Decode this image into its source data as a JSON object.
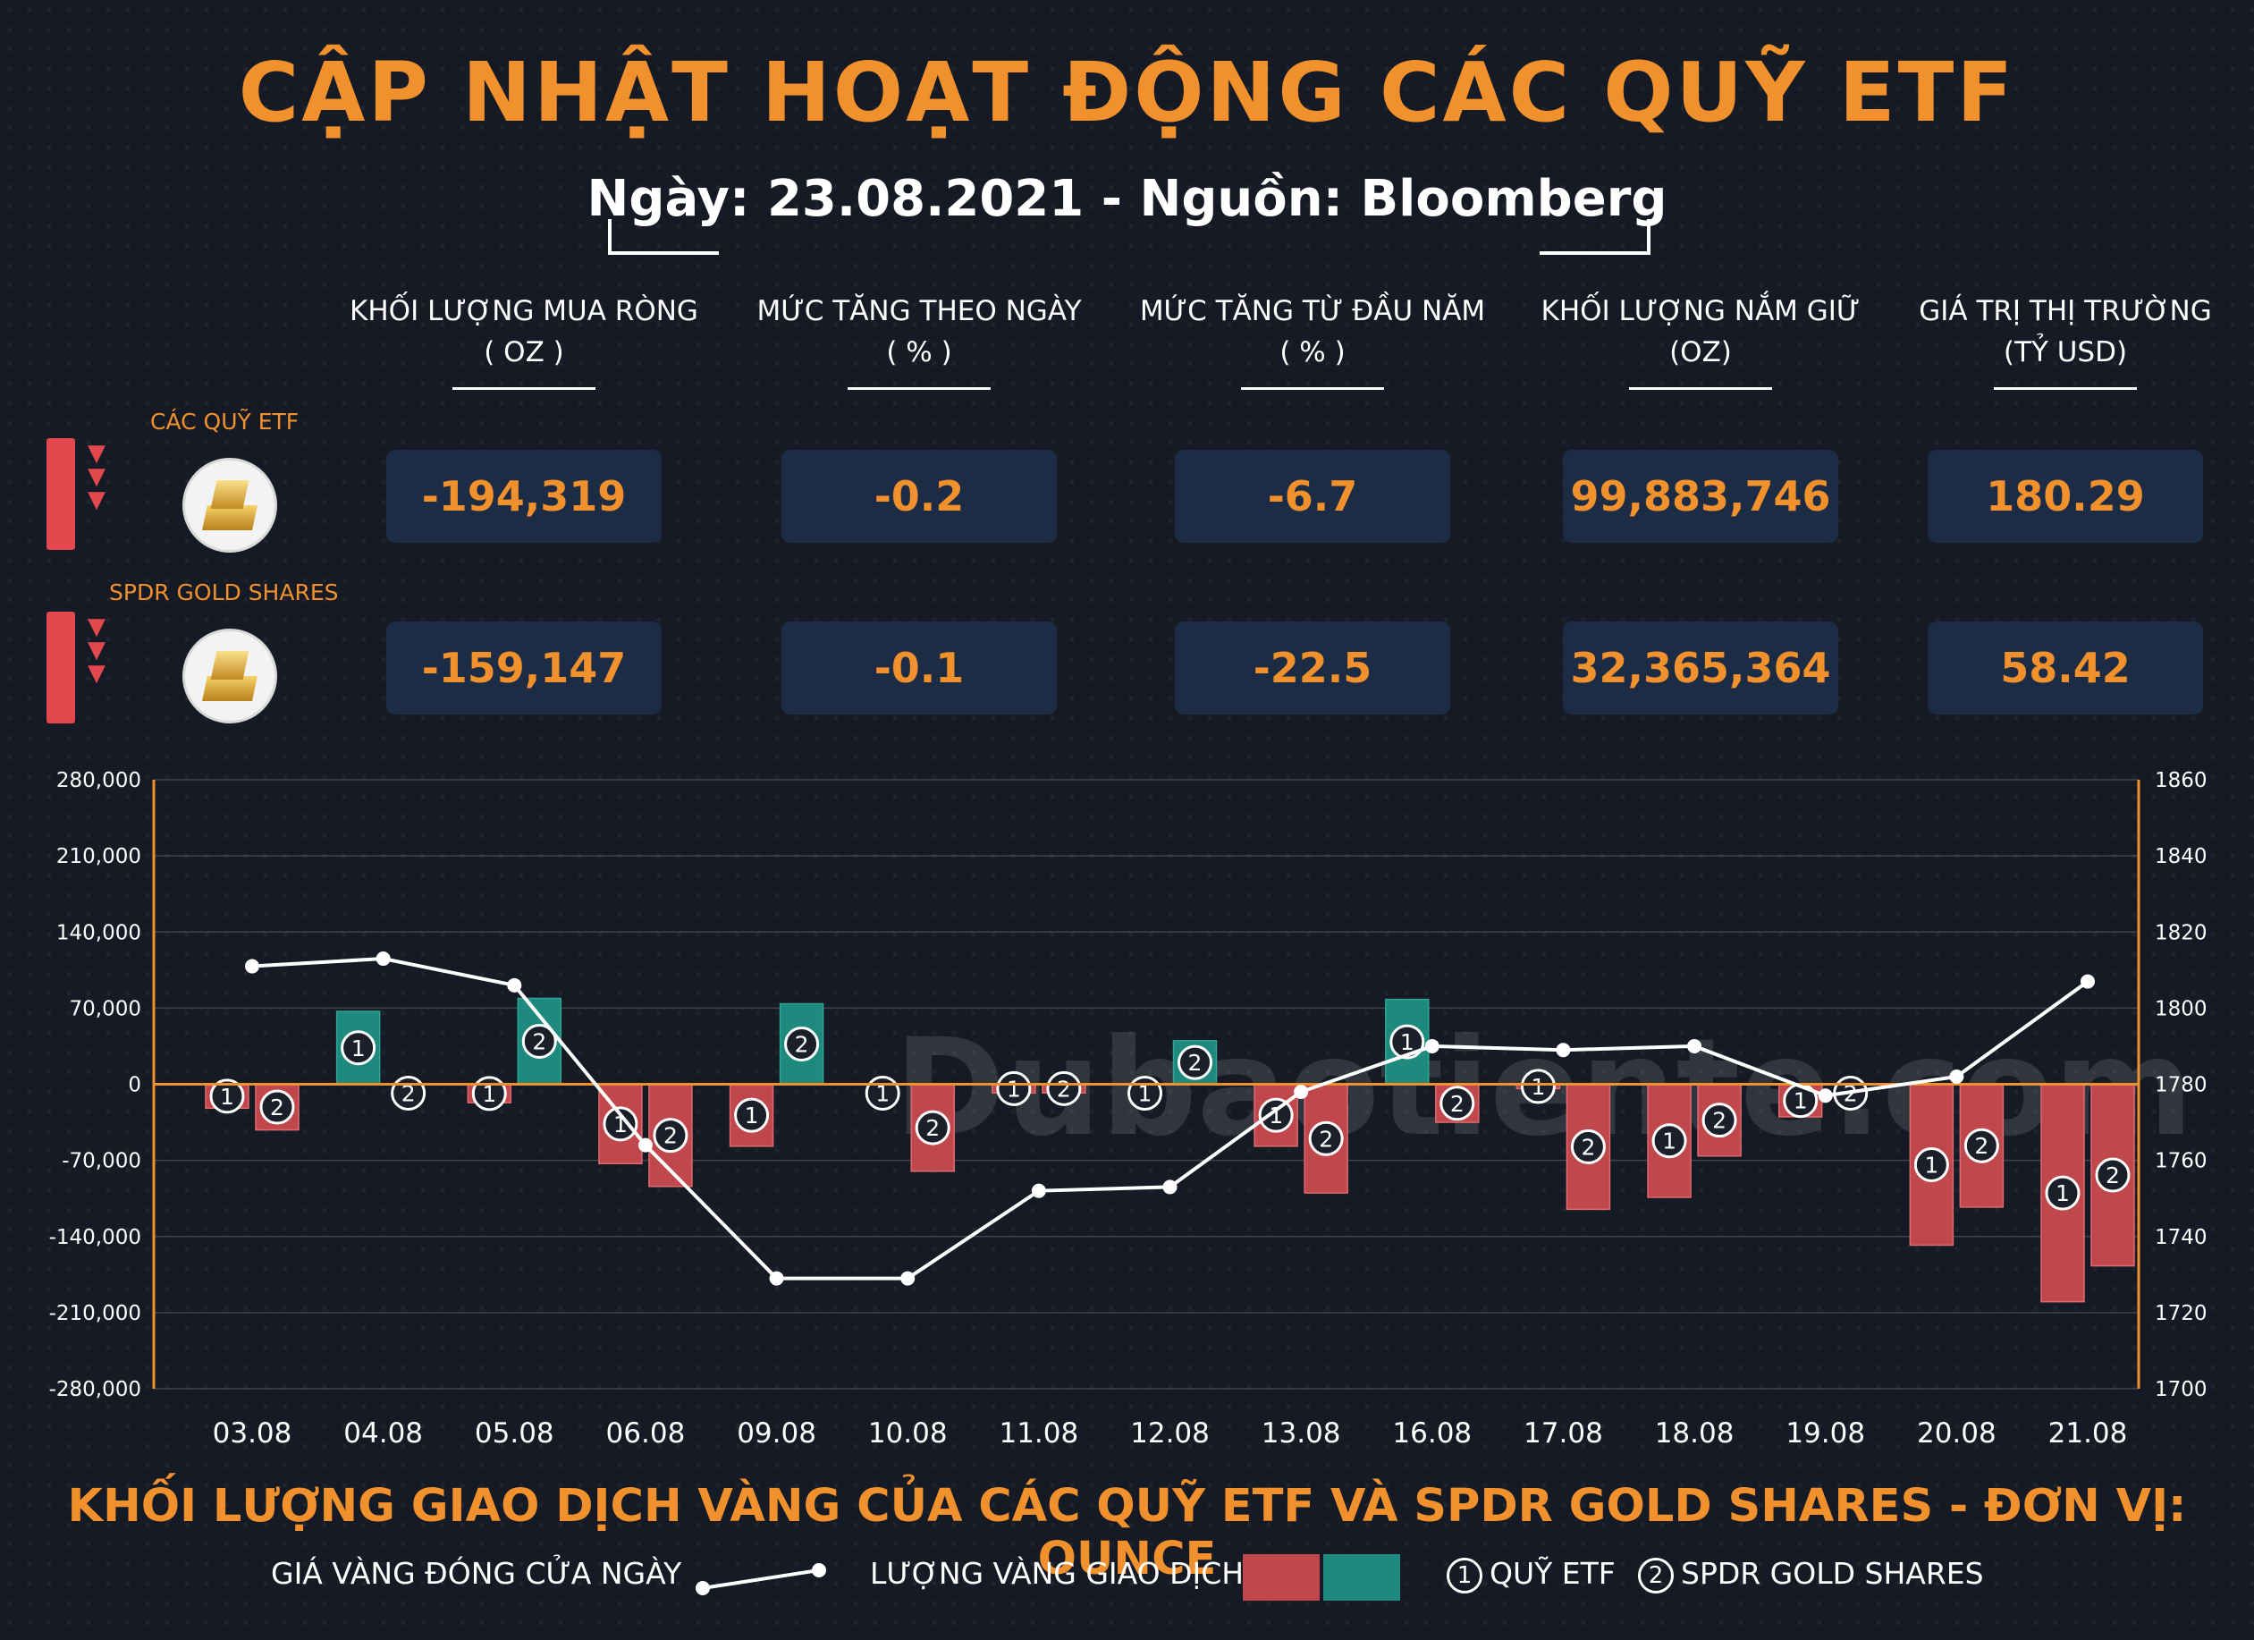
{
  "title": "CẬP NHẬT HOẠT ĐỘNG CÁC QUỸ ETF",
  "subtitle": "Ngày: 23.08.2021 - Nguồn: Bloomberg",
  "watermark": "Dubaotiente.com",
  "columns": [
    {
      "line1": "KHỐI LƯỢNG MUA RÒNG",
      "line2": "( OZ )"
    },
    {
      "line1": "MỨC TĂNG THEO NGÀY",
      "line2": "( % )"
    },
    {
      "line1": "MỨC TĂNG TỪ ĐẦU NĂM",
      "line2": "( % )"
    },
    {
      "line1": "KHỐI LƯỢNG NẮM GIỮ",
      "line2": "(OZ)"
    },
    {
      "line1": "GIÁ TRỊ THỊ TRƯỜNG",
      "line2": "(TỶ USD)"
    }
  ],
  "rows": [
    {
      "label": "CÁC QUỸ ETF",
      "values": [
        "-194,319",
        "-0.2",
        "-6.7",
        "99,883,746",
        "180.29"
      ]
    },
    {
      "label": "SPDR GOLD SHARES",
      "values": [
        "-159,147",
        "-0.1",
        "-22.5",
        "32,365,364",
        "58.42"
      ]
    }
  ],
  "colors": {
    "accent": "#f0912e",
    "negative": "#c0474c",
    "positive": "#1e8a7d",
    "box": "#1d2c45",
    "background": "#151a24"
  },
  "chart_data": {
    "type": "bar",
    "categories": [
      "03.08",
      "04.08",
      "05.08",
      "06.08",
      "09.08",
      "10.08",
      "11.08",
      "12.08",
      "13.08",
      "16.08",
      "17.08",
      "18.08",
      "19.08",
      "20.08",
      "21.08"
    ],
    "series": [
      {
        "name": "QUỸ ETF",
        "marker": "1",
        "values": [
          -22000,
          67000,
          -17000,
          -73000,
          -57000,
          0,
          -8000,
          0,
          -57000,
          78000,
          -4000,
          -104000,
          -30000,
          -148000,
          -200000
        ]
      },
      {
        "name": "SPDR GOLD SHARES",
        "marker": "2",
        "values": [
          -42000,
          0,
          79000,
          -94000,
          74000,
          -80000,
          -8000,
          40000,
          -100000,
          -35000,
          -115000,
          -66000,
          0,
          -113000,
          -167000
        ]
      },
      {
        "name": "GIÁ VÀNG ĐÓNG CỬA NGÀY",
        "type": "line",
        "axis": "right",
        "values": [
          1811,
          1813,
          1806,
          1764,
          1729,
          1729,
          1752,
          1753,
          1778,
          1790,
          1789,
          1790,
          1777,
          1782,
          1807
        ]
      }
    ],
    "ylim": [
      -280000,
      280000
    ],
    "yticks": [
      "280,000",
      "210,000",
      "140,000",
      "70,000",
      "0",
      "-70,000",
      "-140,000",
      "-210,000",
      "-280,000"
    ],
    "y2lim": [
      1700,
      1860
    ],
    "y2ticks": [
      "1860",
      "1840",
      "1820",
      "1800",
      "1780",
      "1760",
      "1740",
      "1720",
      "1700"
    ],
    "xlabel": "KHỐI LƯỢNG GIAO DỊCH VÀNG CỦA CÁC QUỸ ETF VÀ SPDR GOLD SHARES - ĐƠN VỊ: OUNCE",
    "legend": {
      "line": "GIÁ VÀNG ĐÓNG CỬA NGÀY",
      "bars": "LƯỢNG VÀNG GIAO DỊCH",
      "m1": "1",
      "s1": "QUỸ ETF",
      "m2": "2",
      "s2": "SPDR GOLD SHARES"
    },
    "legend_position": "bottom"
  }
}
